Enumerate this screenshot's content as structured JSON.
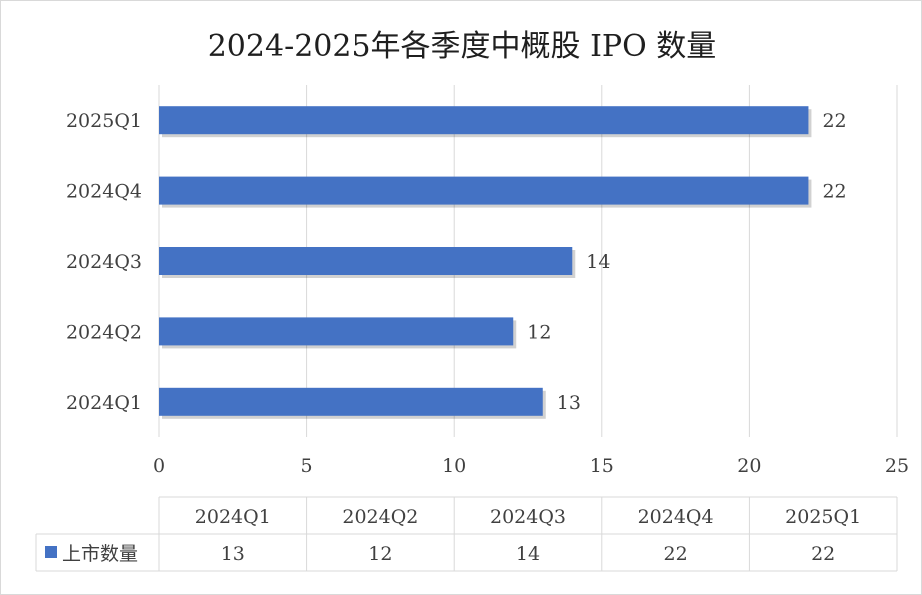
{
  "chart_data": {
    "type": "bar",
    "orientation": "horizontal",
    "title": "2024-2025年各季度中概股 IPO 数量",
    "categories": [
      "2024Q1",
      "2024Q2",
      "2024Q3",
      "2024Q4",
      "2025Q1"
    ],
    "series": [
      {
        "name": "上市数量",
        "values": [
          13,
          12,
          14,
          22,
          22
        ],
        "color": "#4472c4"
      }
    ],
    "xlim": [
      0,
      25
    ],
    "xticks": [
      0,
      5,
      10,
      15,
      20,
      25
    ],
    "grid": true,
    "data_labels": true,
    "data_table": true,
    "category_order": "bottom-to-top"
  },
  "colors": {
    "bar": "#4472c4",
    "grid": "#d9d9d9",
    "text": "#404040"
  }
}
